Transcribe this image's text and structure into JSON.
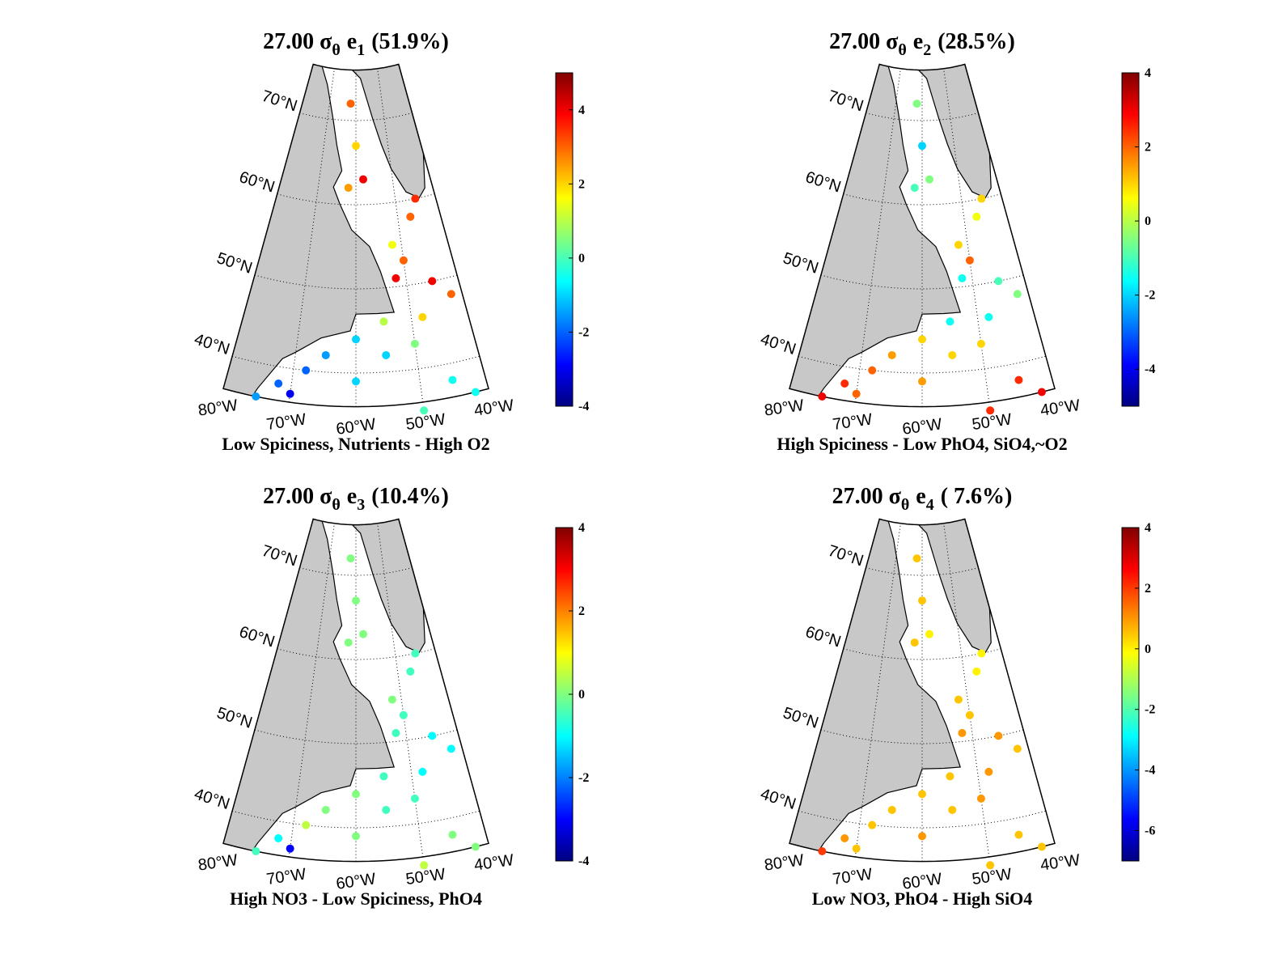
{
  "chart_data": [
    {
      "type": "map",
      "title": {
        "level": "27.00",
        "symbol": "σ",
        "symbol_sub": "θ",
        "mode": "e",
        "mode_sub": "1",
        "variance": "(51.9%)"
      },
      "caption": "Low Spiciness, Nutrients - High O2",
      "xlim": [
        -80,
        -40
      ],
      "ylim": [
        36,
        76
      ],
      "xticks": [
        {
          "value": -80,
          "label": "80°W"
        },
        {
          "value": -70,
          "label": "70°W"
        },
        {
          "value": -60,
          "label": "60°W"
        },
        {
          "value": -50,
          "label": "50°W"
        },
        {
          "value": -40,
          "label": "40°W"
        }
      ],
      "yticks": [
        {
          "value": 40,
          "label": "40°N"
        },
        {
          "value": 50,
          "label": "50°N"
        },
        {
          "value": 60,
          "label": "60°N"
        },
        {
          "value": 70,
          "label": "70°N"
        }
      ],
      "clim": [
        -4,
        5
      ],
      "cticks": [
        -4,
        -2,
        0,
        2,
        4
      ],
      "colormap": "jet",
      "grid": true,
      "lon": [
        -62,
        -60,
        -62,
        -58,
        -45,
        -47,
        -52,
        -50,
        -52,
        -45,
        -42,
        -48,
        -55,
        -60,
        -65,
        -55,
        -50,
        -68,
        -72,
        -70,
        -75,
        -60,
        -45,
        -50,
        -42
      ],
      "lat": [
        72,
        67,
        62,
        63,
        60,
        58,
        55,
        53,
        51,
        50,
        48,
        46,
        46,
        44,
        42,
        42,
        43,
        40,
        38,
        37,
        36,
        39,
        38,
        35,
        36
      ],
      "values": [
        3,
        2,
        2.5,
        4,
        3.5,
        3,
        1.5,
        3,
        4,
        4,
        3,
        2,
        1,
        -1,
        -1.5,
        -1,
        0.5,
        -2,
        -2,
        -3,
        -1.5,
        -1,
        -0.5,
        0,
        -0.5
      ]
    },
    {
      "type": "map",
      "title": {
        "level": "27.00",
        "symbol": "σ",
        "symbol_sub": "θ",
        "mode": "e",
        "mode_sub": "2",
        "variance": "(28.5%)"
      },
      "caption": "High Spiciness - Low PhO4, SiO4,~O2",
      "xlim": [
        -80,
        -40
      ],
      "ylim": [
        36,
        76
      ],
      "xticks": [
        {
          "value": -80,
          "label": "80°W"
        },
        {
          "value": -70,
          "label": "70°W"
        },
        {
          "value": -60,
          "label": "60°W"
        },
        {
          "value": -50,
          "label": "50°W"
        },
        {
          "value": -40,
          "label": "40°W"
        }
      ],
      "yticks": [
        {
          "value": 40,
          "label": "40°N"
        },
        {
          "value": 50,
          "label": "50°N"
        },
        {
          "value": 60,
          "label": "60°N"
        },
        {
          "value": 70,
          "label": "70°N"
        }
      ],
      "clim": [
        -5,
        4
      ],
      "cticks": [
        -4,
        -2,
        0,
        2,
        4
      ],
      "colormap": "jet",
      "grid": true,
      "lon": [
        -62,
        -60,
        -62,
        -58,
        -45,
        -47,
        -52,
        -50,
        -52,
        -45,
        -42,
        -48,
        -55,
        -60,
        -65,
        -55,
        -50,
        -68,
        -72,
        -70,
        -75,
        -60,
        -45,
        -50,
        -42
      ],
      "lat": [
        72,
        67,
        62,
        63,
        60,
        58,
        55,
        53,
        51,
        50,
        48,
        46,
        46,
        44,
        42,
        42,
        43,
        40,
        38,
        37,
        36,
        39,
        38,
        35,
        36
      ],
      "values": [
        -0.5,
        -2,
        -1,
        -0.5,
        1,
        0.5,
        1,
        2,
        -1.5,
        -1,
        -0.5,
        -1.5,
        -1.5,
        1,
        1.5,
        1,
        1,
        2,
        2.5,
        2,
        3,
        1.5,
        2.5,
        2.5,
        3
      ]
    },
    {
      "type": "map",
      "title": {
        "level": "27.00",
        "symbol": "σ",
        "symbol_sub": "θ",
        "mode": "e",
        "mode_sub": "3",
        "variance": "(10.4%)"
      },
      "caption": "High NO3 - Low Spiciness, PhO4",
      "xlim": [
        -80,
        -40
      ],
      "ylim": [
        36,
        76
      ],
      "xticks": [
        {
          "value": -80,
          "label": "80°W"
        },
        {
          "value": -70,
          "label": "70°W"
        },
        {
          "value": -60,
          "label": "60°W"
        },
        {
          "value": -50,
          "label": "50°W"
        },
        {
          "value": -40,
          "label": "40°W"
        }
      ],
      "yticks": [
        {
          "value": 40,
          "label": "40°N"
        },
        {
          "value": 50,
          "label": "50°N"
        },
        {
          "value": 60,
          "label": "60°N"
        },
        {
          "value": 70,
          "label": "70°N"
        }
      ],
      "clim": [
        -4,
        4
      ],
      "cticks": [
        -4,
        -2,
        0,
        2,
        4
      ],
      "colormap": "jet",
      "grid": true,
      "lon": [
        -62,
        -60,
        -62,
        -58,
        -45,
        -47,
        -52,
        -50,
        -52,
        -45,
        -42,
        -48,
        -55,
        -60,
        -65,
        -55,
        -50,
        -68,
        -72,
        -70,
        -75,
        -60,
        -45,
        -50,
        -42
      ],
      "lat": [
        72,
        67,
        62,
        63,
        60,
        58,
        55,
        53,
        51,
        50,
        48,
        46,
        46,
        44,
        42,
        42,
        43,
        40,
        38,
        37,
        36,
        39,
        38,
        35,
        36
      ],
      "values": [
        0,
        0,
        0,
        0,
        -0.5,
        -0.5,
        0,
        -0.5,
        -0.5,
        -1,
        -1,
        -1,
        -0.5,
        0,
        0,
        -0.5,
        -0.5,
        0.5,
        -1,
        -3,
        -0.5,
        0,
        0,
        0.5,
        0
      ]
    },
    {
      "type": "map",
      "title": {
        "level": "27.00",
        "symbol": "σ",
        "symbol_sub": "θ",
        "mode": "e",
        "mode_sub": "4",
        "variance": "( 7.6%)"
      },
      "caption": "Low NO3, PhO4 - High SiO4",
      "xlim": [
        -80,
        -40
      ],
      "ylim": [
        36,
        76
      ],
      "xticks": [
        {
          "value": -80,
          "label": "80°W"
        },
        {
          "value": -70,
          "label": "70°W"
        },
        {
          "value": -60,
          "label": "60°W"
        },
        {
          "value": -50,
          "label": "50°W"
        },
        {
          "value": -40,
          "label": "40°W"
        }
      ],
      "yticks": [
        {
          "value": 40,
          "label": "40°N"
        },
        {
          "value": 50,
          "label": "50°N"
        },
        {
          "value": 60,
          "label": "60°N"
        },
        {
          "value": 70,
          "label": "70°N"
        }
      ],
      "clim": [
        -7,
        4
      ],
      "cticks": [
        -6,
        -4,
        -2,
        0,
        2,
        4
      ],
      "colormap": "jet",
      "grid": true,
      "lon": [
        -62,
        -60,
        -62,
        -58,
        -45,
        -47,
        -52,
        -50,
        -52,
        -45,
        -42,
        -48,
        -55,
        -60,
        -65,
        -55,
        -50,
        -68,
        -72,
        -70,
        -75,
        -60,
        -45,
        -50,
        -42
      ],
      "lat": [
        72,
        67,
        62,
        63,
        60,
        58,
        55,
        53,
        51,
        50,
        48,
        46,
        46,
        44,
        42,
        42,
        43,
        40,
        38,
        37,
        36,
        39,
        38,
        35,
        36
      ],
      "values": [
        0.5,
        0.5,
        0.5,
        0,
        0,
        0,
        0.5,
        0.5,
        1,
        1,
        0.5,
        1,
        0.5,
        0.5,
        0.5,
        0.5,
        1,
        0.5,
        1,
        0.5,
        2,
        1,
        0.5,
        0.5,
        0.5
      ]
    }
  ]
}
